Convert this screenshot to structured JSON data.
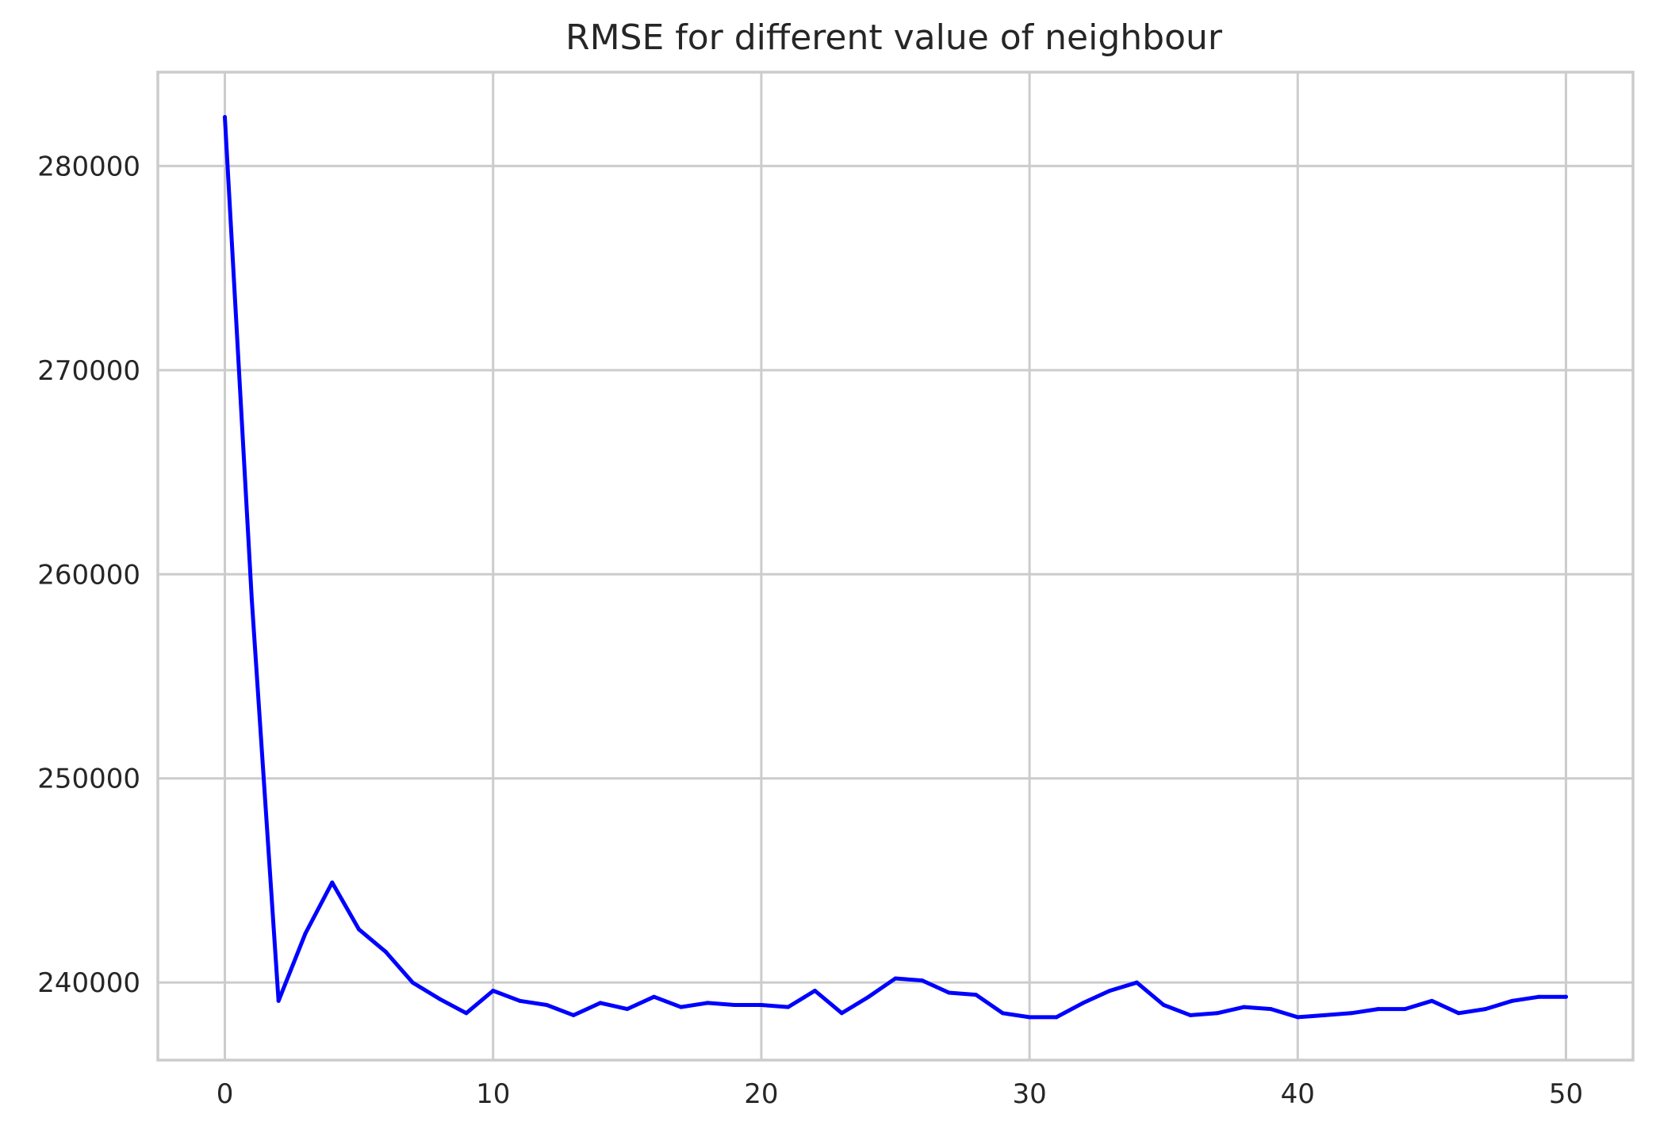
{
  "chart_data": {
    "type": "line",
    "title": "RMSE for different value of neighbour",
    "xlabel": "",
    "ylabel": "",
    "xlim": [
      -2.5,
      52.5
    ],
    "ylim": [
      236200,
      284600
    ],
    "xticks": [
      0,
      10,
      20,
      30,
      40,
      50
    ],
    "yticks": [
      240000,
      250000,
      260000,
      270000,
      280000
    ],
    "grid": true,
    "legend": "none",
    "series": [
      {
        "color": "#0000ff",
        "x": [
          0,
          1,
          2,
          3,
          4,
          5,
          6,
          7,
          8,
          9,
          10,
          11,
          12,
          13,
          14,
          15,
          16,
          17,
          18,
          19,
          20,
          21,
          22,
          23,
          24,
          25,
          26,
          27,
          28,
          29,
          30,
          31,
          32,
          33,
          34,
          35,
          36,
          37,
          38,
          39,
          40,
          41,
          42,
          43,
          44,
          45,
          46,
          47,
          48,
          49,
          50
        ],
        "y": [
          282400,
          258800,
          239100,
          242400,
          244900,
          242600,
          241500,
          240000,
          239200,
          238500,
          239600,
          239100,
          238900,
          238400,
          239000,
          238700,
          239300,
          238800,
          239000,
          238900,
          238900,
          238800,
          239600,
          238500,
          239300,
          240200,
          240100,
          239500,
          239400,
          238500,
          238300,
          238300,
          239000,
          239600,
          240000,
          238900,
          238400,
          238500,
          238800,
          238700,
          238300,
          238400,
          238500,
          238700,
          238700,
          239100,
          238500,
          238700,
          239100,
          239300,
          239300
        ]
      }
    ]
  }
}
